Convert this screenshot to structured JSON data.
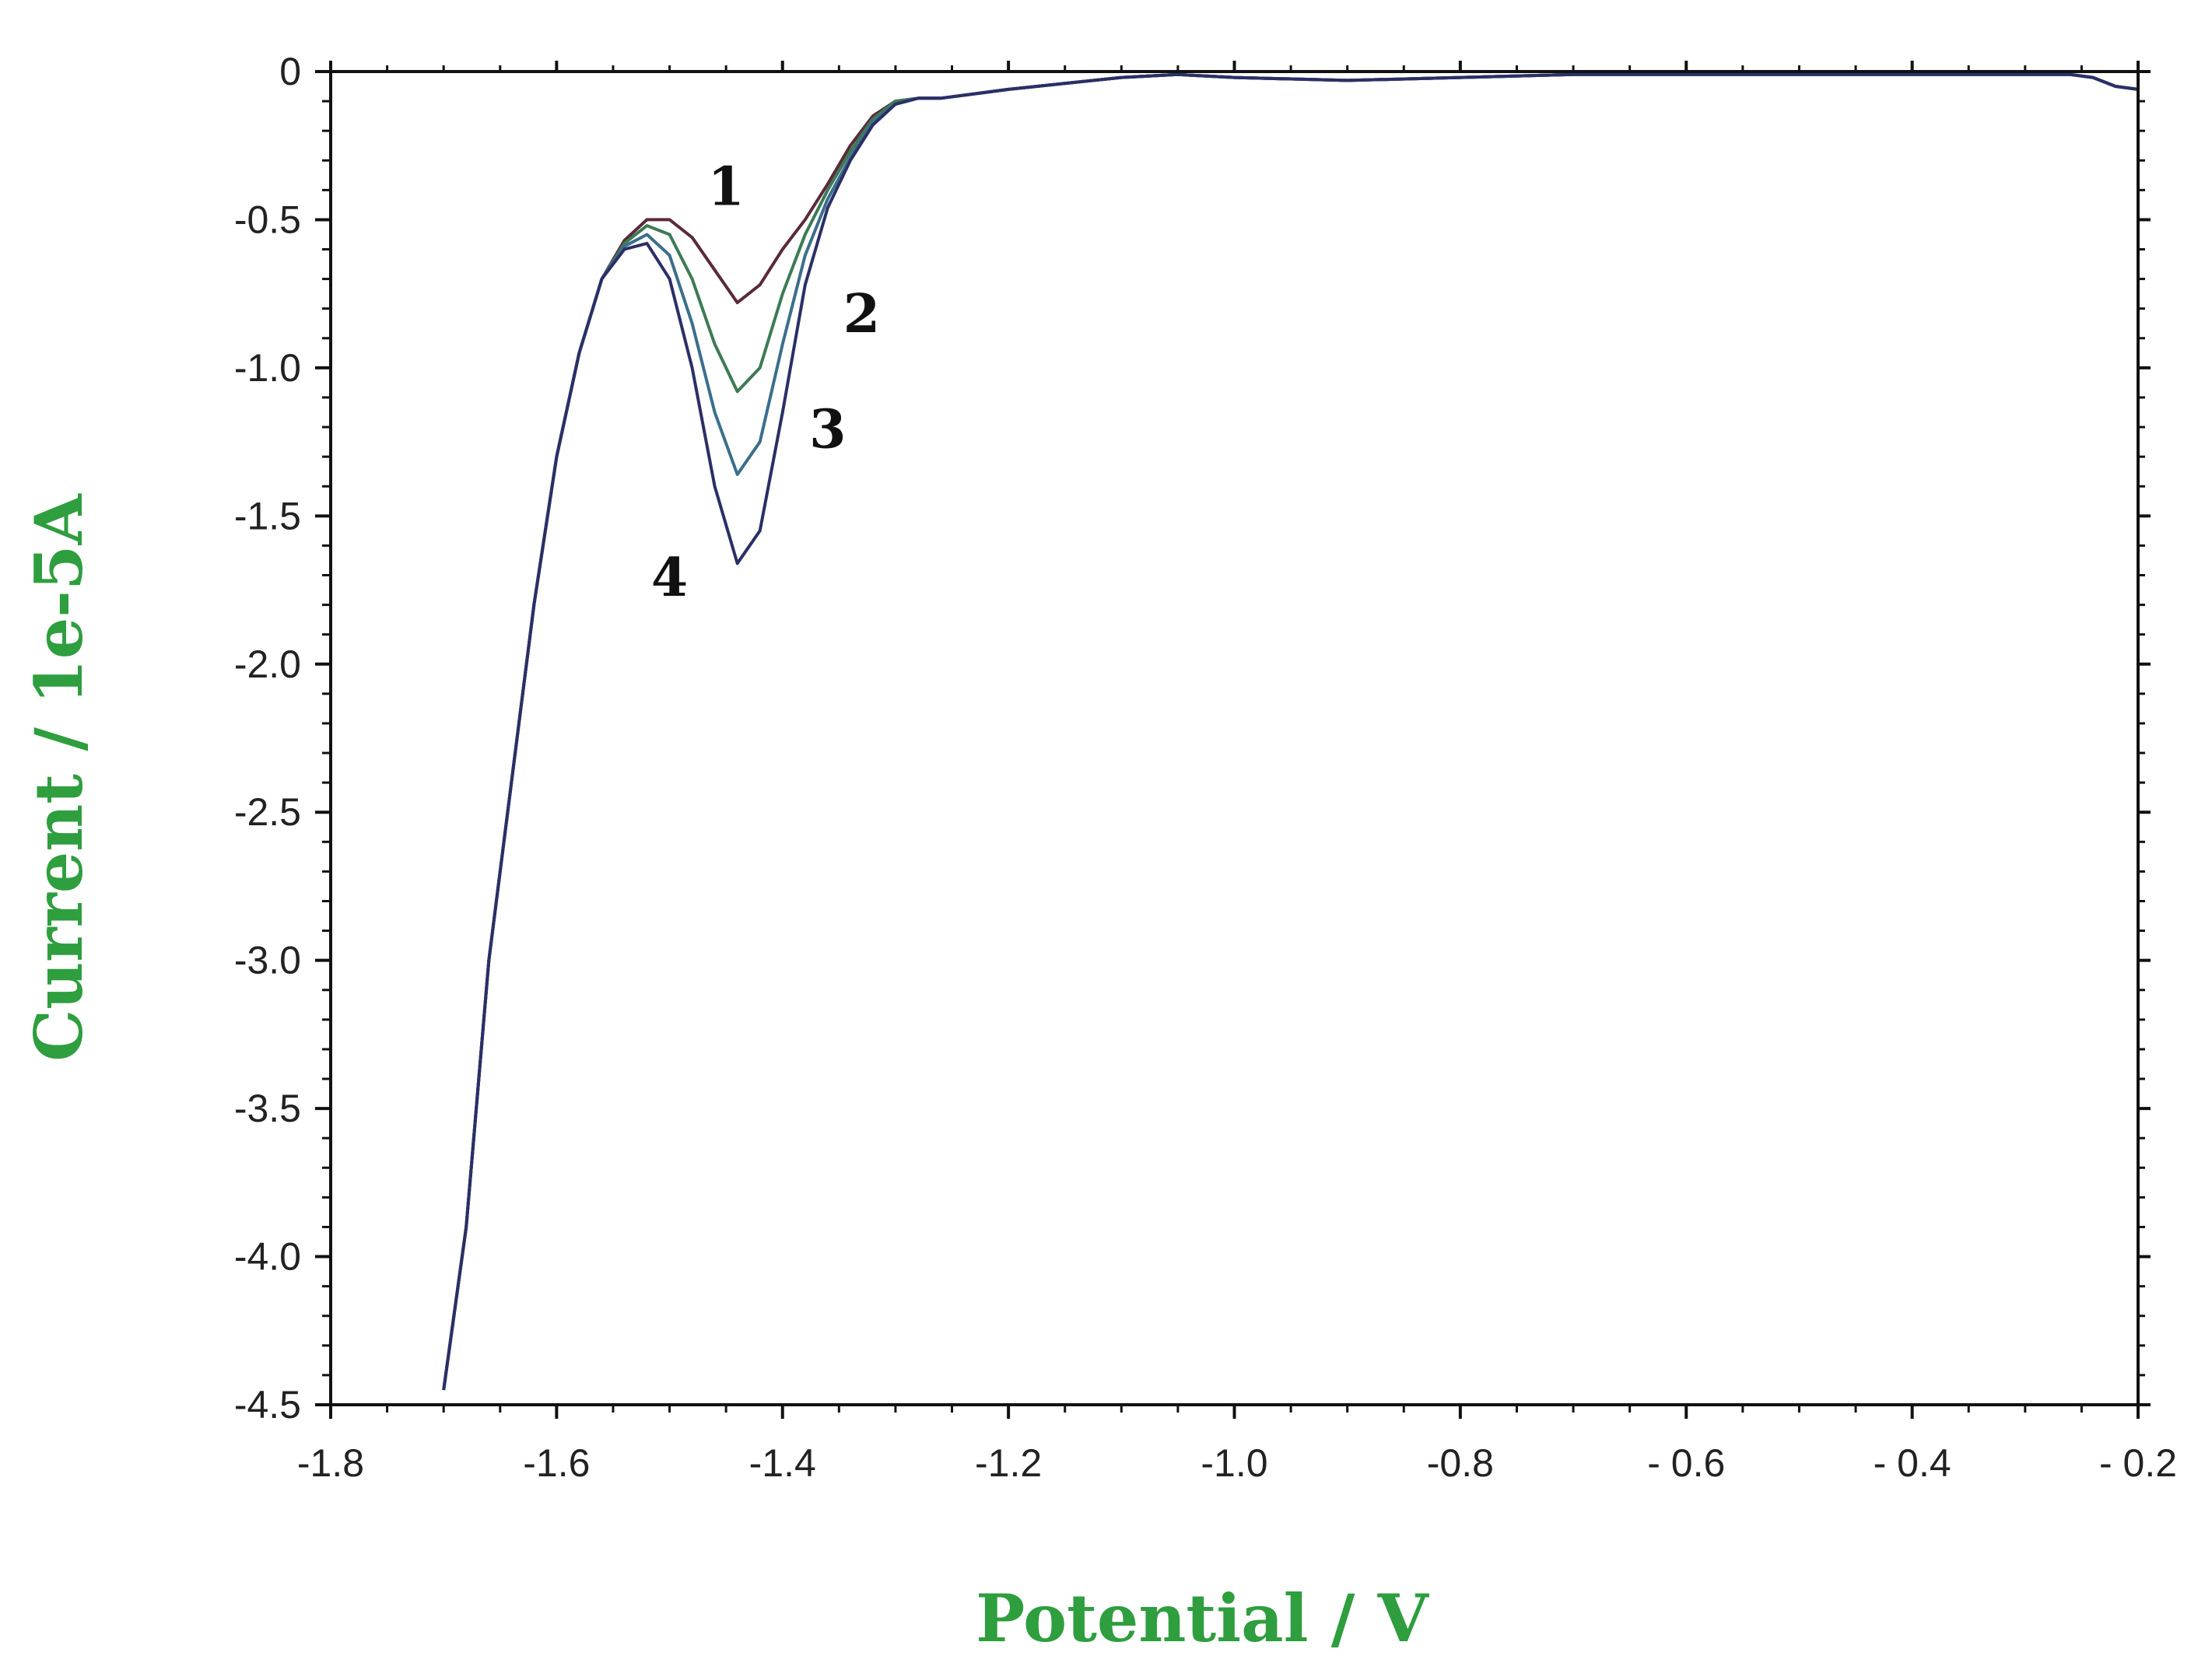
{
  "chart_data": {
    "type": "line",
    "xlabel": "Potential / V",
    "ylabel": "Current / 1e-5A",
    "label_color": "#2e9e3e",
    "xlim": [
      -1.8,
      -0.2
    ],
    "ylim": [
      -4.5,
      0
    ],
    "x_ticks": [
      -1.8,
      -1.6,
      -1.4,
      -1.2,
      -1.0,
      -0.8,
      -0.6,
      -0.4,
      -0.2
    ],
    "x_tick_labels": [
      "-1.8",
      "-1.6",
      "-1.4",
      "-1.2",
      "-1.0",
      "-0.8",
      "- 0.6",
      "- 0.4",
      "- 0.2"
    ],
    "y_ticks": [
      0,
      -0.5,
      -1.0,
      -1.5,
      -2.0,
      -2.5,
      -3.0,
      -3.5,
      -4.0,
      -4.5
    ],
    "y_tick_labels": [
      "0",
      "-0.5",
      "-1.0",
      "-1.5",
      "-2.0",
      "-2.5",
      "-3.0",
      "-3.5",
      "-4.0",
      "-4.5"
    ],
    "grid": false,
    "series": [
      {
        "name": "1",
        "color": "#5a2a3a",
        "x": [
          -1.7,
          -1.68,
          -1.66,
          -1.64,
          -1.62,
          -1.6,
          -1.58,
          -1.56,
          -1.54,
          -1.52,
          -1.5,
          -1.48,
          -1.46,
          -1.44,
          -1.42,
          -1.4,
          -1.38,
          -1.36,
          -1.34,
          -1.32,
          -1.3,
          -1.28,
          -1.26,
          -1.2,
          -1.1,
          -1.05,
          -1.0,
          -0.9,
          -0.8,
          -0.7,
          -0.5,
          -0.3,
          -0.26,
          -0.24,
          -0.22,
          -0.2
        ],
        "y": [
          -4.45,
          -3.9,
          -3.0,
          -2.4,
          -1.8,
          -1.3,
          -0.95,
          -0.7,
          -0.57,
          -0.5,
          -0.5,
          -0.56,
          -0.67,
          -0.78,
          -0.72,
          -0.6,
          -0.5,
          -0.38,
          -0.25,
          -0.15,
          -0.1,
          -0.09,
          -0.09,
          -0.06,
          -0.02,
          -0.01,
          -0.02,
          -0.03,
          -0.02,
          -0.01,
          -0.01,
          -0.01,
          -0.01,
          -0.02,
          -0.05,
          -0.06
        ]
      },
      {
        "name": "2",
        "color": "#3d7a55",
        "x": [
          -1.7,
          -1.68,
          -1.66,
          -1.64,
          -1.62,
          -1.6,
          -1.58,
          -1.56,
          -1.54,
          -1.52,
          -1.5,
          -1.48,
          -1.46,
          -1.44,
          -1.42,
          -1.4,
          -1.38,
          -1.36,
          -1.34,
          -1.32,
          -1.3,
          -1.28,
          -1.26,
          -1.2,
          -1.1,
          -1.05,
          -1.0,
          -0.9,
          -0.8,
          -0.7,
          -0.5,
          -0.3,
          -0.26,
          -0.24,
          -0.22,
          -0.2
        ],
        "y": [
          -4.45,
          -3.9,
          -3.0,
          -2.4,
          -1.8,
          -1.3,
          -0.95,
          -0.7,
          -0.58,
          -0.52,
          -0.55,
          -0.7,
          -0.92,
          -1.08,
          -1.0,
          -0.75,
          -0.55,
          -0.4,
          -0.27,
          -0.16,
          -0.1,
          -0.09,
          -0.09,
          -0.06,
          -0.02,
          -0.01,
          -0.02,
          -0.03,
          -0.02,
          -0.01,
          -0.01,
          -0.01,
          -0.01,
          -0.02,
          -0.05,
          -0.06
        ]
      },
      {
        "name": "3",
        "color": "#3a6f8c",
        "x": [
          -1.7,
          -1.68,
          -1.66,
          -1.64,
          -1.62,
          -1.6,
          -1.58,
          -1.56,
          -1.54,
          -1.52,
          -1.5,
          -1.48,
          -1.46,
          -1.44,
          -1.42,
          -1.4,
          -1.38,
          -1.36,
          -1.34,
          -1.32,
          -1.3,
          -1.28,
          -1.26,
          -1.2,
          -1.1,
          -1.05,
          -1.0,
          -0.9,
          -0.8,
          -0.7,
          -0.5,
          -0.3,
          -0.26,
          -0.24,
          -0.22,
          -0.2
        ],
        "y": [
          -4.45,
          -3.9,
          -3.0,
          -2.4,
          -1.8,
          -1.3,
          -0.95,
          -0.7,
          -0.59,
          -0.55,
          -0.62,
          -0.85,
          -1.15,
          -1.36,
          -1.25,
          -0.92,
          -0.62,
          -0.43,
          -0.29,
          -0.17,
          -0.11,
          -0.09,
          -0.09,
          -0.06,
          -0.02,
          -0.01,
          -0.02,
          -0.03,
          -0.02,
          -0.01,
          -0.01,
          -0.01,
          -0.01,
          -0.02,
          -0.05,
          -0.06
        ]
      },
      {
        "name": "4",
        "color": "#2b2f66",
        "x": [
          -1.7,
          -1.68,
          -1.66,
          -1.64,
          -1.62,
          -1.6,
          -1.58,
          -1.56,
          -1.54,
          -1.52,
          -1.5,
          -1.48,
          -1.46,
          -1.44,
          -1.42,
          -1.4,
          -1.38,
          -1.36,
          -1.34,
          -1.32,
          -1.3,
          -1.28,
          -1.26,
          -1.2,
          -1.1,
          -1.05,
          -1.0,
          -0.9,
          -0.8,
          -0.7,
          -0.5,
          -0.3,
          -0.26,
          -0.24,
          -0.22,
          -0.2
        ],
        "y": [
          -4.45,
          -3.9,
          -3.0,
          -2.4,
          -1.8,
          -1.3,
          -0.95,
          -0.7,
          -0.6,
          -0.58,
          -0.7,
          -1.0,
          -1.4,
          -1.66,
          -1.55,
          -1.15,
          -0.72,
          -0.46,
          -0.3,
          -0.18,
          -0.11,
          -0.09,
          -0.09,
          -0.06,
          -0.02,
          -0.01,
          -0.02,
          -0.03,
          -0.02,
          -0.01,
          -0.01,
          -0.01,
          -0.01,
          -0.02,
          -0.05,
          -0.06
        ]
      }
    ],
    "annotations": [
      {
        "text": "1",
        "x": -1.45,
        "y": -0.45
      },
      {
        "text": "2",
        "x": -1.33,
        "y": -0.88
      },
      {
        "text": "3",
        "x": -1.36,
        "y": -1.27
      },
      {
        "text": "4",
        "x": -1.5,
        "y": -1.77
      }
    ]
  }
}
